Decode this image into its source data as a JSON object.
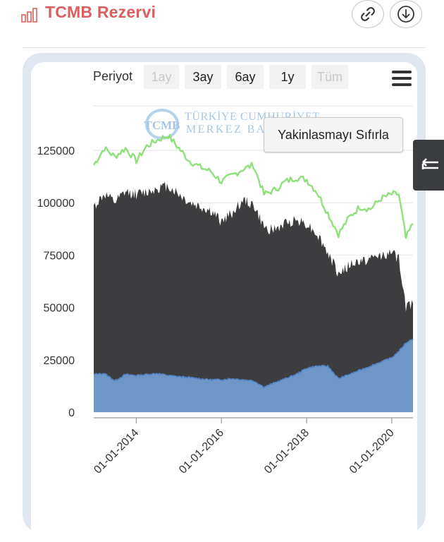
{
  "header": {
    "title": "TCMB Rezervi",
    "icon": "bar-chart-icon",
    "buttons": [
      {
        "name": "link-icon"
      },
      {
        "name": "download-icon"
      }
    ]
  },
  "toolbar": {
    "periyot_label": "Periyot",
    "ranges": [
      {
        "label": "1ay",
        "enabled": false
      },
      {
        "label": "3ay",
        "enabled": true
      },
      {
        "label": "6ay",
        "enabled": true
      },
      {
        "label": "1y",
        "enabled": true
      },
      {
        "label": "Tüm",
        "enabled": false
      }
    ],
    "menu_icon": "hamburger-icon"
  },
  "reset_zoom_label": "Yakinlasmayı Sıfırla",
  "watermark": {
    "logo_text": "TCMB",
    "line1": "TÜRKİYE CUMHURİYET",
    "line2": "MERKEZ BANKASI"
  },
  "side_tab_icon": "collapse-arrow-icon",
  "colors": {
    "title": "#d9605f",
    "green_series": "#8ee07a",
    "dark_series": "#3d3d40",
    "blue_series": "#6e97c8",
    "blue_series_line": "#4f82c4"
  },
  "chart_data": {
    "type": "area",
    "x_range": [
      "2013-01-01",
      "2020-07-01"
    ],
    "ylim": [
      0,
      135000
    ],
    "y_ticks": [
      "0",
      "25000",
      "50000",
      "75000",
      "100000",
      "125000"
    ],
    "x_ticks": [
      "01-01-2014",
      "01-01-2016",
      "01-01-2018",
      "01-01-2020"
    ],
    "x_tick_dates": [
      "2014-01-01",
      "2016-01-01",
      "2018-01-01",
      "2020-01-01"
    ],
    "grid": "horizontal",
    "series": [
      {
        "kind": "line",
        "color": "#8ee07a",
        "points": [
          [
            "2013-01-01",
            118000
          ],
          [
            "2013-04-01",
            126000
          ],
          [
            "2013-07-01",
            122000
          ],
          [
            "2013-10-01",
            126000
          ],
          [
            "2014-01-01",
            120000
          ],
          [
            "2014-04-01",
            127000
          ],
          [
            "2014-07-01",
            130000
          ],
          [
            "2014-10-01",
            132000
          ],
          [
            "2015-01-01",
            126000
          ],
          [
            "2015-04-01",
            120000
          ],
          [
            "2015-07-01",
            117000
          ],
          [
            "2015-10-01",
            115000
          ],
          [
            "2016-01-01",
            110000
          ],
          [
            "2016-04-01",
            113000
          ],
          [
            "2016-07-01",
            116000
          ],
          [
            "2016-10-01",
            118000
          ],
          [
            "2017-01-01",
            104000
          ],
          [
            "2017-04-01",
            106000
          ],
          [
            "2017-07-01",
            110000
          ],
          [
            "2017-10-01",
            112000
          ],
          [
            "2018-01-01",
            111000
          ],
          [
            "2018-04-01",
            105000
          ],
          [
            "2018-07-01",
            95000
          ],
          [
            "2018-10-01",
            85000
          ],
          [
            "2019-01-01",
            93000
          ],
          [
            "2019-04-01",
            98000
          ],
          [
            "2019-07-01",
            97000
          ],
          [
            "2019-10-01",
            102000
          ],
          [
            "2020-01-01",
            104000
          ],
          [
            "2020-03-01",
            104000
          ],
          [
            "2020-05-01",
            83000
          ],
          [
            "2020-07-01",
            90000
          ]
        ]
      },
      {
        "kind": "area",
        "color": "#3d3d40",
        "points": [
          [
            "2013-01-01",
            98000
          ],
          [
            "2013-04-01",
            104000
          ],
          [
            "2013-07-01",
            100000
          ],
          [
            "2013-10-01",
            105000
          ],
          [
            "2014-01-01",
            104000
          ],
          [
            "2014-04-01",
            105000
          ],
          [
            "2014-07-01",
            107000
          ],
          [
            "2014-10-01",
            108000
          ],
          [
            "2015-01-01",
            104000
          ],
          [
            "2015-04-01",
            100000
          ],
          [
            "2015-07-01",
            98000
          ],
          [
            "2015-10-01",
            96000
          ],
          [
            "2016-01-01",
            91000
          ],
          [
            "2016-04-01",
            95000
          ],
          [
            "2016-07-01",
            101000
          ],
          [
            "2016-10-01",
            99000
          ],
          [
            "2017-01-01",
            88000
          ],
          [
            "2017-04-01",
            87000
          ],
          [
            "2017-07-01",
            90000
          ],
          [
            "2017-10-01",
            92000
          ],
          [
            "2018-01-01",
            90000
          ],
          [
            "2018-04-01",
            85000
          ],
          [
            "2018-07-01",
            76000
          ],
          [
            "2018-10-01",
            66000
          ],
          [
            "2019-01-01",
            70000
          ],
          [
            "2019-04-01",
            72000
          ],
          [
            "2019-07-01",
            73000
          ],
          [
            "2019-10-01",
            75000
          ],
          [
            "2020-01-01",
            76000
          ],
          [
            "2020-03-01",
            73000
          ],
          [
            "2020-05-01",
            50000
          ],
          [
            "2020-07-01",
            52000
          ]
        ]
      },
      {
        "kind": "area",
        "color": "#6e97c8",
        "points": [
          [
            "2013-01-01",
            18000
          ],
          [
            "2013-04-01",
            18500
          ],
          [
            "2013-07-01",
            15000
          ],
          [
            "2013-10-01",
            18000
          ],
          [
            "2014-01-01",
            17500
          ],
          [
            "2014-04-01",
            18000
          ],
          [
            "2014-07-01",
            18500
          ],
          [
            "2014-10-01",
            17500
          ],
          [
            "2015-01-01",
            17000
          ],
          [
            "2015-04-01",
            16500
          ],
          [
            "2015-07-01",
            16000
          ],
          [
            "2015-10-01",
            15500
          ],
          [
            "2016-01-01",
            15500
          ],
          [
            "2016-04-01",
            16000
          ],
          [
            "2016-07-01",
            15500
          ],
          [
            "2016-10-01",
            15000
          ],
          [
            "2017-01-01",
            12000
          ],
          [
            "2017-04-01",
            14000
          ],
          [
            "2017-07-01",
            16000
          ],
          [
            "2017-10-01",
            18000
          ],
          [
            "2018-01-01",
            21000
          ],
          [
            "2018-04-01",
            22000
          ],
          [
            "2018-07-01",
            22000
          ],
          [
            "2018-10-01",
            16000
          ],
          [
            "2019-01-01",
            18000
          ],
          [
            "2019-04-01",
            20000
          ],
          [
            "2019-07-01",
            22000
          ],
          [
            "2019-10-01",
            24000
          ],
          [
            "2020-01-01",
            26000
          ],
          [
            "2020-03-01",
            29000
          ],
          [
            "2020-05-01",
            33000
          ],
          [
            "2020-07-01",
            35000
          ]
        ]
      }
    ]
  }
}
